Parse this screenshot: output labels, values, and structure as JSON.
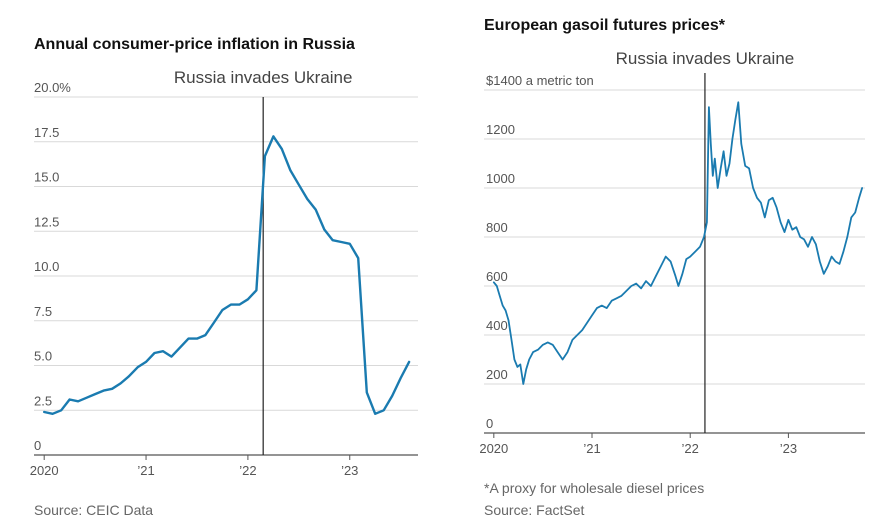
{
  "left": {
    "title": "Annual consumer-price inflation in Russia",
    "source": "Source: CEIC Data",
    "annotation": "Russia invades Ukraine",
    "colors": {
      "line": "#1a7bb0",
      "grid": "#d9d9d9",
      "axis": "#555555",
      "event": "#222222"
    },
    "chart_data": {
      "type": "line",
      "title": "Annual consumer-price inflation in Russia",
      "ylabel": "",
      "xlabel": "",
      "ylim": [
        0,
        20
      ],
      "xlim": [
        2019.9,
        2023.67
      ],
      "y_ticks": [
        {
          "value": 20,
          "label": "20.0%"
        },
        {
          "value": 17.5,
          "label": "17.5"
        },
        {
          "value": 15,
          "label": "15.0"
        },
        {
          "value": 12.5,
          "label": "12.5"
        },
        {
          "value": 10,
          "label": "10.0"
        },
        {
          "value": 7.5,
          "label": "7.5"
        },
        {
          "value": 5,
          "label": "5.0"
        },
        {
          "value": 2.5,
          "label": "2.5"
        },
        {
          "value": 0,
          "label": "0"
        }
      ],
      "x_ticks": [
        {
          "value": 2020,
          "label": "2020"
        },
        {
          "value": 2021,
          "label": "’21"
        },
        {
          "value": 2022,
          "label": "’22"
        },
        {
          "value": 2023,
          "label": "’23"
        }
      ],
      "event": {
        "x": 2022.15,
        "label": "Russia invades Ukraine"
      },
      "series": [
        {
          "x": [
            2020.0,
            2020.083,
            2020.167,
            2020.25,
            2020.333,
            2020.417,
            2020.5,
            2020.583,
            2020.667,
            2020.75,
            2020.833,
            2020.917,
            2021.0,
            2021.083,
            2021.167,
            2021.25,
            2021.333,
            2021.417,
            2021.5,
            2021.583,
            2021.667,
            2021.75,
            2021.833,
            2021.917,
            2022.0,
            2022.083,
            2022.167,
            2022.25,
            2022.333,
            2022.417,
            2022.5,
            2022.583,
            2022.667,
            2022.75,
            2022.833,
            2022.917,
            2023.0,
            2023.083,
            2023.167,
            2023.25,
            2023.333,
            2023.417,
            2023.5,
            2023.583
          ],
          "values": [
            2.4,
            2.3,
            2.5,
            3.1,
            3.0,
            3.2,
            3.4,
            3.6,
            3.7,
            4.0,
            4.4,
            4.9,
            5.2,
            5.7,
            5.8,
            5.5,
            6.0,
            6.5,
            6.5,
            6.7,
            7.4,
            8.1,
            8.4,
            8.4,
            8.7,
            9.2,
            16.7,
            17.8,
            17.1,
            15.9,
            15.1,
            14.3,
            13.7,
            12.6,
            12.0,
            11.9,
            11.8,
            11.0,
            3.5,
            2.3,
            2.5,
            3.3,
            4.3,
            5.2
          ]
        }
      ]
    }
  },
  "right": {
    "title": "European gasoil futures prices*",
    "source": "Source: FactSet",
    "note": "*A proxy for wholesale diesel prices",
    "annotation": "Russia invades Ukraine",
    "unit_label": "$1400 a metric ton",
    "colors": {
      "line": "#1a7bb0",
      "grid": "#d9d9d9",
      "axis": "#555555",
      "event": "#222222"
    },
    "chart_data": {
      "type": "line",
      "title": "European gasoil futures prices*",
      "ylabel": "",
      "xlabel": "",
      "ylim": [
        0,
        1400
      ],
      "xlim": [
        2019.9,
        2023.78
      ],
      "y_ticks": [
        {
          "value": 1400,
          "label": "$1400 a metric ton"
        },
        {
          "value": 1200,
          "label": "1200"
        },
        {
          "value": 1000,
          "label": "1000"
        },
        {
          "value": 800,
          "label": "800"
        },
        {
          "value": 600,
          "label": "600"
        },
        {
          "value": 400,
          "label": "400"
        },
        {
          "value": 200,
          "label": "200"
        },
        {
          "value": 0,
          "label": "0"
        }
      ],
      "x_ticks": [
        {
          "value": 2020,
          "label": "2020"
        },
        {
          "value": 2021,
          "label": "’21"
        },
        {
          "value": 2022,
          "label": "’22"
        },
        {
          "value": 2023,
          "label": "’23"
        }
      ],
      "event": {
        "x": 2022.15,
        "label": "Russia invades Ukraine"
      },
      "series": [
        {
          "x": [
            2020.0,
            2020.03,
            2020.06,
            2020.09,
            2020.12,
            2020.15,
            2020.18,
            2020.21,
            2020.24,
            2020.27,
            2020.3,
            2020.33,
            2020.36,
            2020.4,
            2020.45,
            2020.5,
            2020.55,
            2020.6,
            2020.65,
            2020.7,
            2020.75,
            2020.8,
            2020.85,
            2020.9,
            2020.95,
            2021.0,
            2021.05,
            2021.1,
            2021.15,
            2021.2,
            2021.25,
            2021.3,
            2021.35,
            2021.4,
            2021.45,
            2021.5,
            2021.55,
            2021.6,
            2021.65,
            2021.7,
            2021.75,
            2021.8,
            2021.85,
            2021.88,
            2021.92,
            2021.96,
            2022.0,
            2022.05,
            2022.1,
            2022.14,
            2022.17,
            2022.19,
            2022.21,
            2022.23,
            2022.25,
            2022.28,
            2022.31,
            2022.34,
            2022.37,
            2022.4,
            2022.43,
            2022.46,
            2022.49,
            2022.52,
            2022.56,
            2022.6,
            2022.64,
            2022.68,
            2022.72,
            2022.76,
            2022.8,
            2022.84,
            2022.88,
            2022.92,
            2022.96,
            2023.0,
            2023.04,
            2023.08,
            2023.12,
            2023.16,
            2023.2,
            2023.24,
            2023.28,
            2023.32,
            2023.36,
            2023.4,
            2023.44,
            2023.48,
            2023.52,
            2023.56,
            2023.6,
            2023.64,
            2023.68,
            2023.72,
            2023.75
          ],
          "values": [
            615,
            600,
            560,
            520,
            500,
            460,
            380,
            300,
            270,
            280,
            200,
            260,
            300,
            330,
            340,
            360,
            370,
            360,
            330,
            300,
            330,
            380,
            400,
            420,
            450,
            480,
            510,
            520,
            510,
            540,
            550,
            560,
            580,
            600,
            610,
            590,
            620,
            600,
            640,
            680,
            720,
            700,
            640,
            600,
            650,
            710,
            720,
            740,
            760,
            800,
            860,
            1330,
            1180,
            1050,
            1120,
            1000,
            1080,
            1150,
            1050,
            1100,
            1200,
            1280,
            1350,
            1180,
            1090,
            1080,
            1000,
            960,
            940,
            880,
            950,
            960,
            920,
            860,
            820,
            870,
            830,
            840,
            800,
            790,
            760,
            800,
            770,
            700,
            650,
            680,
            720,
            700,
            690,
            740,
            800,
            880,
            900,
            960,
            1000
          ]
        }
      ]
    }
  }
}
